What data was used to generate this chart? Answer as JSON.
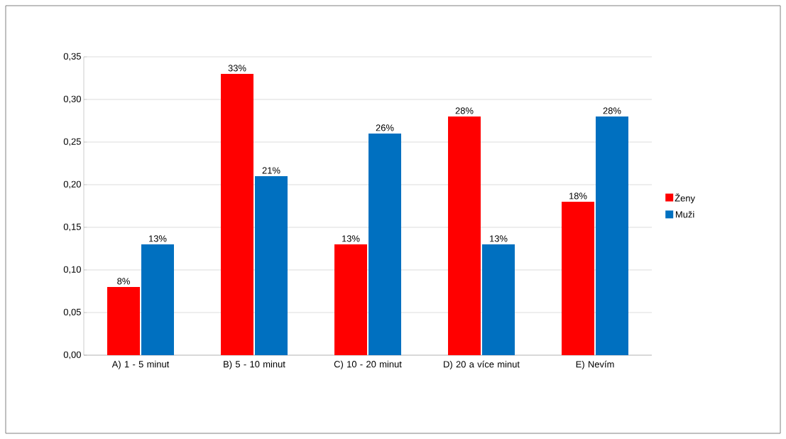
{
  "chart_data": {
    "type": "bar",
    "categories": [
      "A) 1 - 5 minut",
      "B) 5 - 10 minut",
      "C) 10 - 20 minut",
      "D) 20 a více minut",
      "E) Nevím"
    ],
    "series": [
      {
        "name": "Ženy",
        "color": "#ff0000",
        "values": [
          0.08,
          0.33,
          0.13,
          0.28,
          0.18
        ],
        "value_labels": [
          "8%",
          "33%",
          "13%",
          "28%",
          "18%"
        ]
      },
      {
        "name": "Muži",
        "color": "#0070c0",
        "values": [
          0.13,
          0.21,
          0.26,
          0.13,
          0.28
        ],
        "value_labels": [
          "13%",
          "21%",
          "26%",
          "13%",
          "28%"
        ]
      }
    ],
    "ylim": [
      0,
      0.35
    ],
    "yticks": [
      {
        "value": 0,
        "label": "0,00"
      },
      {
        "value": 0.05,
        "label": "0,05"
      },
      {
        "value": 0.1,
        "label": "0,10"
      },
      {
        "value": 0.15,
        "label": "0,15"
      },
      {
        "value": 0.2,
        "label": "0,20"
      },
      {
        "value": 0.25,
        "label": "0,25"
      },
      {
        "value": 0.3,
        "label": "0,30"
      },
      {
        "value": 0.35,
        "label": "0,35"
      }
    ],
    "grid": "y",
    "legend": "right"
  }
}
